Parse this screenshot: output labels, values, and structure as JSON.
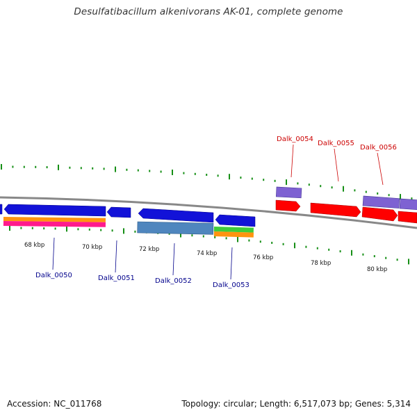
{
  "title": "Desulfatibacillum alkenivorans AK-01, complete genome",
  "footer": {
    "accession": "Accession: NC_011768",
    "summary": "Topology: circular; Length: 6,517,073 bp; Genes: 5,314"
  },
  "colors": {
    "backbone": "#888888",
    "gene_blue": "#1212d8",
    "gene_red": "#ff0000",
    "gene_purple": "#7e62d2",
    "steel_blue": "#4f86be",
    "orange": "#ff9410",
    "magenta": "#ff1a8c",
    "green": "#40cc3a",
    "tick_green": "#168f16",
    "label_blue": "#00008b",
    "label_red": "#cc0000"
  },
  "scale": {
    "unit": "kbp",
    "labels": [
      "68 kbp",
      "70 kbp",
      "72 kbp",
      "74 kbp",
      "76 kbp",
      "78 kbp",
      "80 kbp"
    ]
  },
  "genes": [
    {
      "locus": "Dalk_0050",
      "strand": "reverse",
      "color": "gene_blue"
    },
    {
      "locus": "Dalk_0051",
      "strand": "reverse",
      "color": "gene_blue"
    },
    {
      "locus": "Dalk_0052",
      "strand": "reverse",
      "color": "gene_blue"
    },
    {
      "locus": "Dalk_0053",
      "strand": "reverse",
      "color": "gene_blue"
    },
    {
      "locus": "Dalk_0054",
      "strand": "forward",
      "color": "gene_red"
    },
    {
      "locus": "Dalk_0055",
      "strand": "forward",
      "color": "gene_red"
    },
    {
      "locus": "Dalk_0056",
      "strand": "forward",
      "color": "gene_red"
    }
  ]
}
